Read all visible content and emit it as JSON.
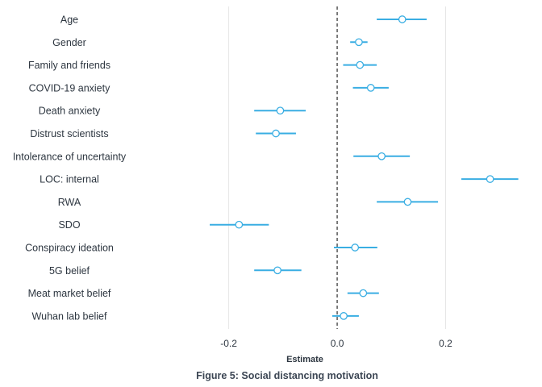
{
  "chart_data": {
    "type": "scatter",
    "title": "Figure 5: Social distancing motivation",
    "xlabel": "Estimate",
    "ylabel": "",
    "xlim": [
      -0.36,
      0.345
    ],
    "xticks": [
      -0.2,
      0.0,
      0.2
    ],
    "xtick_labels": [
      "-0.2",
      "0.0",
      "0.2"
    ],
    "grid": true,
    "reference_line": 0.0,
    "legend": "none",
    "colors": {
      "interval": "#3aaee3",
      "point_fill": "#ffffff",
      "point_stroke": "#3aaee3",
      "gridline": "#e6e6e6",
      "reference": "#000000",
      "text": "#2d3640"
    },
    "categories": [
      "Age",
      "Gender",
      "Family and friends",
      "COVID-19 anxiety",
      "Death anxiety",
      "Distrust scientists",
      "Intolerance of uncertainty",
      "LOC: internal",
      "RWA",
      "SDO",
      "Conspiracy ideation",
      "5G belief",
      "Meat market belief",
      "Wuhan lab belief"
    ],
    "points": [
      {
        "label": "Age",
        "estimate": 0.12,
        "lower": 0.073,
        "upper": 0.165
      },
      {
        "label": "Gender",
        "estimate": 0.04,
        "lower": 0.024,
        "upper": 0.056
      },
      {
        "label": "Family and friends",
        "estimate": 0.042,
        "lower": 0.011,
        "upper": 0.073
      },
      {
        "label": "COVID-19 anxiety",
        "estimate": 0.062,
        "lower": 0.029,
        "upper": 0.095
      },
      {
        "label": "Death anxiety",
        "estimate": -0.105,
        "lower": -0.153,
        "upper": -0.058
      },
      {
        "label": "Distrust scientists",
        "estimate": -0.113,
        "lower": -0.15,
        "upper": -0.076
      },
      {
        "label": "Intolerance of uncertainty",
        "estimate": 0.082,
        "lower": 0.03,
        "upper": 0.134
      },
      {
        "label": "LOC: internal",
        "estimate": 0.282,
        "lower": 0.229,
        "upper": 0.334
      },
      {
        "label": "RWA",
        "estimate": 0.13,
        "lower": 0.073,
        "upper": 0.186
      },
      {
        "label": "SDO",
        "estimate": -0.181,
        "lower": -0.235,
        "upper": -0.126
      },
      {
        "label": "Conspiracy ideation",
        "estimate": 0.033,
        "lower": -0.006,
        "upper": 0.074
      },
      {
        "label": "5G belief",
        "estimate": -0.11,
        "lower": -0.153,
        "upper": -0.066
      },
      {
        "label": "Meat market belief",
        "estimate": 0.048,
        "lower": 0.019,
        "upper": 0.077
      },
      {
        "label": "Wuhan lab belief",
        "estimate": 0.012,
        "lower": -0.009,
        "upper": 0.04
      }
    ]
  }
}
